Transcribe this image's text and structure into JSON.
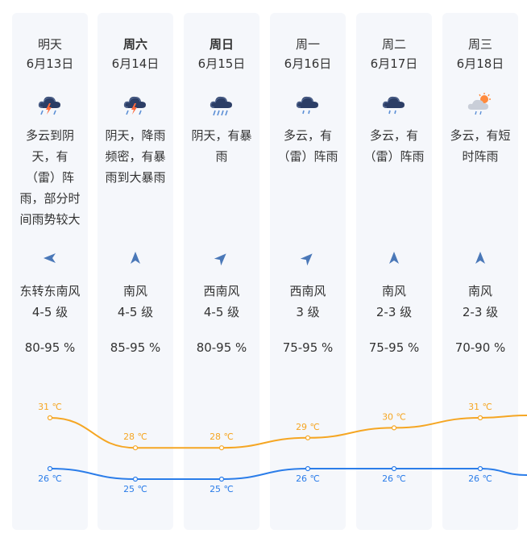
{
  "days": [
    {
      "day": "明天",
      "date": "6月13日",
      "icon": "thunderstorm-icon",
      "desc": [
        "多云到阴",
        "天，有",
        "（雷）阵",
        "雨，部分时",
        "间雨势较大"
      ],
      "wind_dir": "东转东南风",
      "wind_level": "4-5 级",
      "humidity": "80-95 %",
      "bold": false
    },
    {
      "day": "周六",
      "date": "6月14日",
      "icon": "thunderstorm-icon",
      "desc": [
        "阴天，降雨",
        "频密，有暴",
        "雨到大暴雨"
      ],
      "wind_dir": "南风",
      "wind_level": "4-5 级",
      "humidity": "85-95 %",
      "bold": true
    },
    {
      "day": "周日",
      "date": "6月15日",
      "icon": "heavy-rain-icon",
      "desc": [
        "阴天，有暴",
        "雨"
      ],
      "wind_dir": "西南风",
      "wind_level": "4-5 级",
      "humidity": "80-95 %",
      "bold": true
    },
    {
      "day": "周一",
      "date": "6月16日",
      "icon": "rain-cloud-icon",
      "desc": [
        "多云，有",
        "（雷）阵雨"
      ],
      "wind_dir": "西南风",
      "wind_level": "3 级",
      "humidity": "75-95 %",
      "bold": false
    },
    {
      "day": "周二",
      "date": "6月17日",
      "icon": "rain-cloud-icon",
      "desc": [
        "多云，有",
        "（雷）阵雨"
      ],
      "wind_dir": "南风",
      "wind_level": "2-3 级",
      "humidity": "75-95 %",
      "bold": false
    },
    {
      "day": "周三",
      "date": "6月18日",
      "icon": "sun-cloud-rain-icon",
      "desc": [
        "多云，有短",
        "时阵雨"
      ],
      "wind_dir": "南风",
      "wind_level": "2-3 级",
      "humidity": "70-90 %",
      "bold": false
    }
  ],
  "colors": {
    "high": "#f5a623",
    "low": "#2b7de9",
    "card": "#f5f7fb"
  },
  "chart_data": {
    "type": "line",
    "categories": [
      "6月13日",
      "6月14日",
      "6月15日",
      "6月16日",
      "6月17日",
      "6月18日"
    ],
    "series": [
      {
        "values": [
          31,
          28,
          28,
          29,
          30,
          31
        ],
        "labels": [
          "31 ℃",
          "28 ℃",
          "28 ℃",
          "29 ℃",
          "30 ℃",
          "31 ℃"
        ]
      },
      {
        "values": [
          26,
          25,
          25,
          26,
          26,
          26
        ],
        "labels": [
          "26 ℃",
          "25 ℃",
          "25 ℃",
          "26 ℃",
          "26 ℃",
          "26 ℃"
        ]
      }
    ]
  }
}
